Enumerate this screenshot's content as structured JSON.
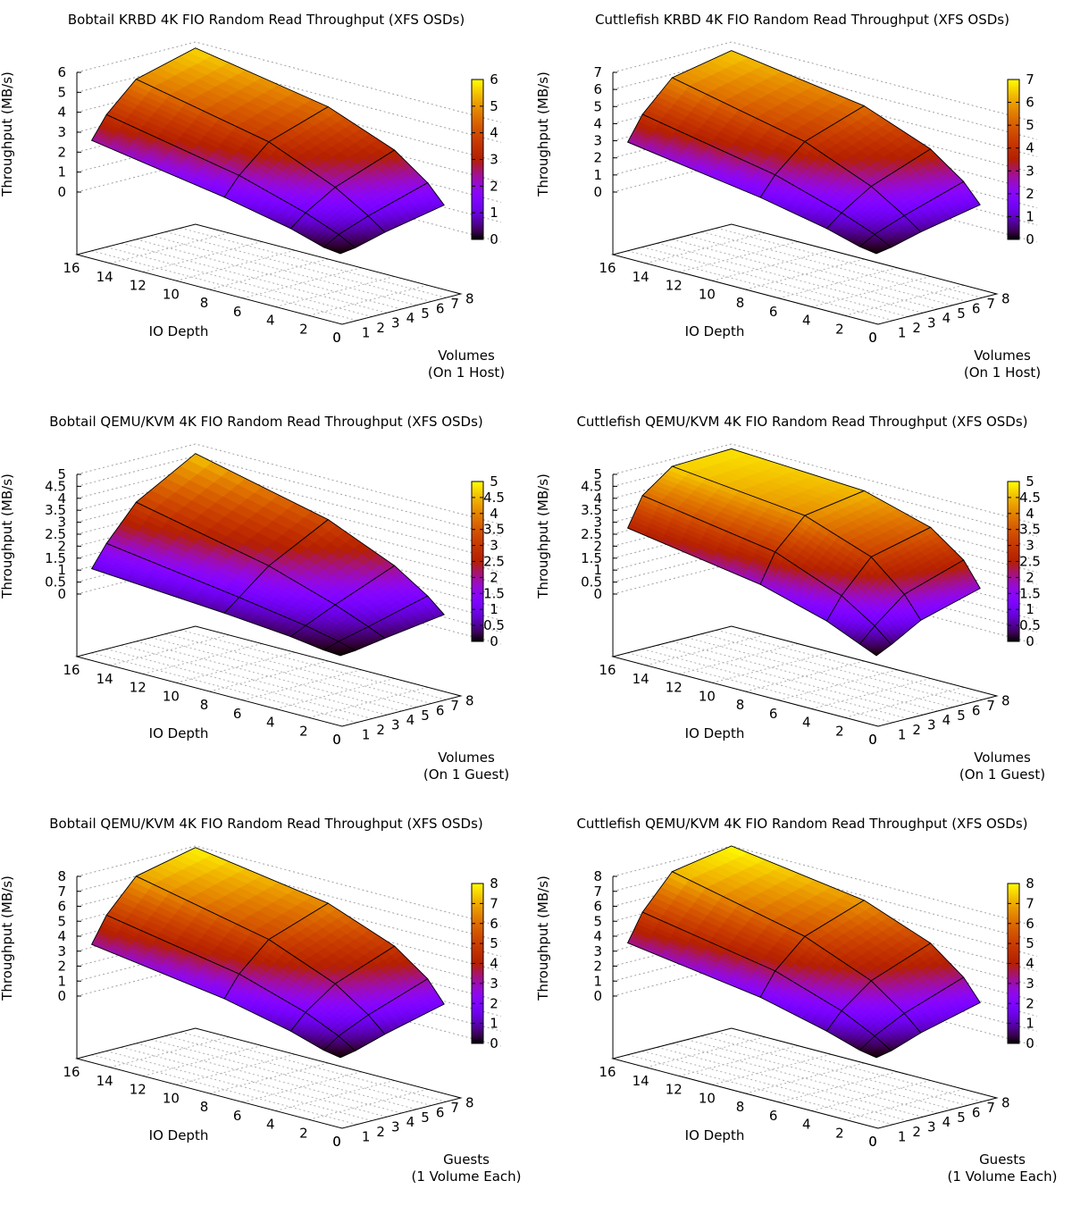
{
  "colors": {
    "axis": "#000000",
    "grid": "#a0a0a0",
    "mesh": "#000000",
    "palette": "gnuplot rgbformulae 7,5,15 (black-purple-red-yellow)"
  },
  "chart_data": [
    {
      "type": "surface3d",
      "title": "Bobtail KRBD 4K FIO Random Read Throughput (XFS OSDs)",
      "xlabel": "IO Depth",
      "ylabel": "Volumes\n(On 1 Host)",
      "ylabel_lines": [
        "Volumes",
        "(On 1 Host)"
      ],
      "zlabel": "Throughput (MB/s)",
      "x_ticks": [
        "16",
        "14",
        "12",
        "10",
        "8",
        "6",
        "4",
        "2",
        "0"
      ],
      "y_ticks": [
        "0",
        "1",
        "2",
        "3",
        "4",
        "5",
        "6",
        "7",
        "8"
      ],
      "z_ticks": [
        "0",
        "1",
        "2",
        "3",
        "4",
        "5",
        "6"
      ],
      "cb_ticks": [
        "0",
        "1",
        "2",
        "3",
        "4",
        "5",
        "6"
      ],
      "xlim": [
        0,
        16
      ],
      "ylim": [
        0,
        8
      ],
      "zlim": [
        0,
        6
      ],
      "io_depth": [
        1,
        2,
        4,
        8,
        16
      ],
      "volumes": [
        1,
        2,
        4,
        8
      ],
      "values_by_volume": [
        [
          0.0,
          0.1,
          0.6,
          1.3,
          2.4
        ],
        [
          0.1,
          0.55,
          1.2,
          2.2,
          3.5
        ],
        [
          0.5,
          1.1,
          2.1,
          3.5,
          4.9
        ],
        [
          1.1,
          2.0,
          3.2,
          4.5,
          5.7
        ]
      ]
    },
    {
      "type": "surface3d",
      "title": "Cuttlefish KRBD 4K FIO Random Read Throughput (XFS OSDs)",
      "xlabel": "IO Depth",
      "ylabel_lines": [
        "Volumes",
        "(On 1 Host)"
      ],
      "zlabel": "Throughput (MB/s)",
      "x_ticks": [
        "16",
        "14",
        "12",
        "10",
        "8",
        "6",
        "4",
        "2",
        "0"
      ],
      "y_ticks": [
        "0",
        "1",
        "2",
        "3",
        "4",
        "5",
        "6",
        "7",
        "8"
      ],
      "z_ticks": [
        "0",
        "1",
        "2",
        "3",
        "4",
        "5",
        "6",
        "7"
      ],
      "cb_ticks": [
        "0",
        "1",
        "2",
        "3",
        "4",
        "5",
        "6",
        "7"
      ],
      "xlim": [
        0,
        16
      ],
      "ylim": [
        0,
        8
      ],
      "zlim": [
        0,
        7
      ],
      "io_depth": [
        1,
        2,
        4,
        8,
        16
      ],
      "volumes": [
        1,
        2,
        4,
        8
      ],
      "values_by_volume": [
        [
          0.0,
          0.15,
          0.7,
          1.5,
          2.7
        ],
        [
          0.15,
          0.65,
          1.4,
          2.6,
          4.1
        ],
        [
          0.6,
          1.3,
          2.5,
          4.1,
          5.8
        ],
        [
          1.3,
          2.4,
          3.8,
          5.3,
          6.5
        ]
      ]
    },
    {
      "type": "surface3d",
      "title": "Bobtail QEMU/KVM 4K FIO Random Read Throughput (XFS OSDs)",
      "xlabel": "IO Depth",
      "ylabel_lines": [
        "Volumes",
        "(On 1 Guest)"
      ],
      "zlabel": "Throughput (MB/s)",
      "x_ticks": [
        "16",
        "14",
        "12",
        "10",
        "8",
        "6",
        "4",
        "2",
        "0"
      ],
      "y_ticks": [
        "0",
        "1",
        "2",
        "3",
        "4",
        "5",
        "6",
        "7",
        "8"
      ],
      "z_ticks": [
        "0",
        "0.5",
        "1",
        "1.5",
        "2",
        "2.5",
        "3",
        "3.5",
        "4",
        "4.5",
        "5"
      ],
      "cb_ticks": [
        "0",
        "0.5",
        "1",
        "1.5",
        "2",
        "2.5",
        "3",
        "3.5",
        "4",
        "4.5",
        "5"
      ],
      "xlim": [
        0,
        16
      ],
      "ylim": [
        0,
        8
      ],
      "zlim": [
        0,
        5
      ],
      "io_depth": [
        1,
        2,
        4,
        8,
        16
      ],
      "volumes": [
        1,
        2,
        4,
        8
      ],
      "values_by_volume": [
        [
          0.0,
          0.05,
          0.25,
          0.5,
          0.9
        ],
        [
          0.05,
          0.25,
          0.55,
          1.0,
          1.8
        ],
        [
          0.25,
          0.55,
          1.1,
          2.0,
          3.2
        ],
        [
          0.6,
          1.2,
          2.1,
          3.3,
          4.6
        ]
      ]
    },
    {
      "type": "surface3d",
      "title": "Cuttlefish QEMU/KVM 4K FIO Random Read Throughput (XFS OSDs)",
      "xlabel": "IO Depth",
      "ylabel_lines": [
        "Volumes",
        "(On 1 Guest)"
      ],
      "zlabel": "Throughput (MB/s)",
      "x_ticks": [
        "16",
        "14",
        "12",
        "10",
        "8",
        "6",
        "4",
        "2",
        "0"
      ],
      "y_ticks": [
        "0",
        "1",
        "2",
        "3",
        "4",
        "5",
        "6",
        "7",
        "8"
      ],
      "z_ticks": [
        "0",
        "0.5",
        "1",
        "1.5",
        "2",
        "2.5",
        "3",
        "3.5",
        "4",
        "4.5",
        "5"
      ],
      "cb_ticks": [
        "0",
        "0.5",
        "1",
        "1.5",
        "2",
        "2.5",
        "3",
        "3.5",
        "4",
        "4.5",
        "5"
      ],
      "xlim": [
        0,
        16
      ],
      "ylim": [
        0,
        8
      ],
      "zlim": [
        0,
        5
      ],
      "io_depth": [
        1,
        2,
        4,
        8,
        16
      ],
      "volumes": [
        1,
        2,
        4,
        8
      ],
      "values_by_volume": [
        [
          0.0,
          0.3,
          0.9,
          1.7,
          2.6
        ],
        [
          0.3,
          0.9,
          1.8,
          2.9,
          3.8
        ],
        [
          1.0,
          1.9,
          3.1,
          4.1,
          4.7
        ],
        [
          1.7,
          2.7,
          3.7,
          4.5,
          4.8
        ]
      ]
    },
    {
      "type": "surface3d",
      "title": "Bobtail QEMU/KVM 4K FIO Random Read Throughput (XFS OSDs)",
      "xlabel": "IO Depth",
      "ylabel_lines": [
        "Guests",
        "(1 Volume Each)"
      ],
      "zlabel": "Throughput (MB/s)",
      "x_ticks": [
        "16",
        "14",
        "12",
        "10",
        "8",
        "6",
        "4",
        "2",
        "0"
      ],
      "y_ticks": [
        "0",
        "1",
        "2",
        "3",
        "4",
        "5",
        "6",
        "7",
        "8"
      ],
      "z_ticks": [
        "0",
        "1",
        "2",
        "3",
        "4",
        "5",
        "6",
        "7",
        "8"
      ],
      "cb_ticks": [
        "0",
        "1",
        "2",
        "3",
        "4",
        "5",
        "6",
        "7",
        "8"
      ],
      "xlim": [
        0,
        16
      ],
      "ylim": [
        0,
        8
      ],
      "zlim": [
        0,
        8
      ],
      "io_depth": [
        1,
        2,
        4,
        8,
        16
      ],
      "volumes": [
        1,
        2,
        4,
        8
      ],
      "values_by_volume": [
        [
          0.0,
          0.2,
          0.9,
          1.9,
          3.2
        ],
        [
          0.2,
          0.9,
          1.9,
          3.3,
          4.9
        ],
        [
          0.8,
          1.8,
          3.3,
          5.1,
          7.0
        ],
        [
          1.8,
          3.2,
          4.8,
          6.5,
          7.9
        ]
      ]
    },
    {
      "type": "surface3d",
      "title": "Cuttlefish QEMU/KVM 4K FIO Random Read Throughput (XFS OSDs)",
      "xlabel": "IO Depth",
      "ylabel_lines": [
        "Guests",
        "(1 Volume Each)"
      ],
      "zlabel": "Throughput (MB/s)",
      "x_ticks": [
        "16",
        "14",
        "12",
        "10",
        "8",
        "6",
        "4",
        "2",
        "0"
      ],
      "y_ticks": [
        "0",
        "1",
        "2",
        "3",
        "4",
        "5",
        "6",
        "7",
        "8"
      ],
      "z_ticks": [
        "0",
        "1",
        "2",
        "3",
        "4",
        "5",
        "6",
        "7",
        "8"
      ],
      "cb_ticks": [
        "0",
        "1",
        "2",
        "3",
        "4",
        "5",
        "6",
        "7",
        "8"
      ],
      "xlim": [
        0,
        16
      ],
      "ylim": [
        0,
        8
      ],
      "zlim": [
        0,
        8
      ],
      "io_depth": [
        1,
        2,
        4,
        8,
        16
      ],
      "volumes": [
        1,
        2,
        4,
        8
      ],
      "values_by_volume": [
        [
          0.0,
          0.2,
          0.9,
          2.0,
          3.3
        ],
        [
          0.2,
          0.9,
          2.0,
          3.5,
          5.1
        ],
        [
          0.9,
          1.9,
          3.5,
          5.3,
          7.3
        ],
        [
          1.9,
          3.3,
          5.0,
          6.7,
          8.0
        ]
      ]
    }
  ]
}
